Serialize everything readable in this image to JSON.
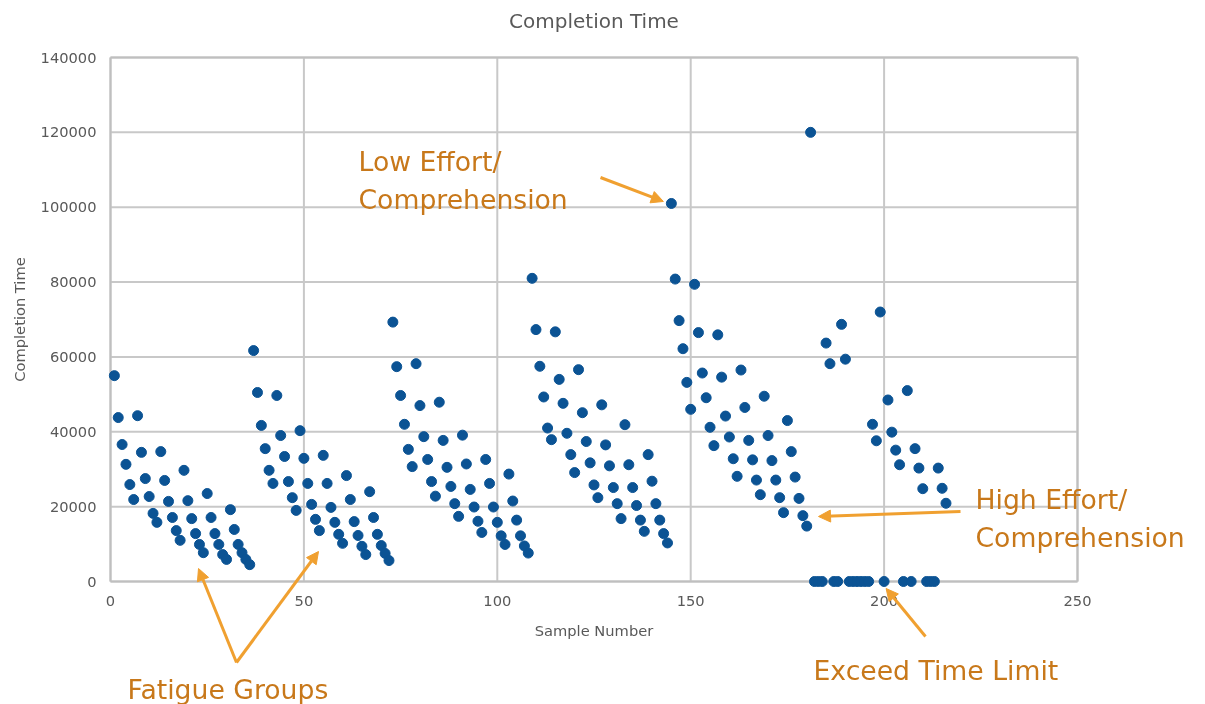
{
  "chart_data": {
    "type": "scatter",
    "title": "Completion Time",
    "xlabel": "Sample Number",
    "ylabel": "Completion Time",
    "xlim": [
      0,
      250
    ],
    "xticks": [
      0,
      50,
      100,
      150,
      200,
      250
    ],
    "ylim": [
      0,
      140000
    ],
    "yticks": [
      0,
      20000,
      40000,
      60000,
      80000,
      100000,
      120000,
      140000
    ],
    "grid": true,
    "marker": "circle",
    "series": [
      {
        "color": "#0b5394",
        "x": [
          1,
          2,
          3,
          4,
          5,
          6,
          7,
          8,
          9,
          10,
          11,
          12,
          13,
          14,
          15,
          16,
          17,
          18,
          19,
          20,
          21,
          22,
          23,
          24,
          25,
          26,
          27,
          28,
          29,
          30,
          31,
          32,
          33,
          34,
          35,
          36,
          37,
          38,
          39,
          40,
          41,
          42,
          43,
          44,
          45,
          46,
          47,
          48,
          49,
          50,
          51,
          52,
          53,
          54,
          55,
          56,
          57,
          58,
          59,
          60,
          61,
          62,
          63,
          64,
          65,
          66,
          67,
          68,
          69,
          70,
          71,
          72,
          73,
          74,
          75,
          76,
          77,
          78,
          79,
          80,
          81,
          82,
          83,
          84,
          85,
          86,
          87,
          88,
          89,
          90,
          91,
          92,
          93,
          94,
          95,
          96,
          97,
          98,
          99,
          100,
          101,
          102,
          103,
          104,
          105,
          106,
          107,
          108,
          109,
          110,
          111,
          112,
          113,
          114,
          115,
          116,
          117,
          118,
          119,
          120,
          121,
          122,
          123,
          124,
          125,
          126,
          127,
          128,
          129,
          130,
          131,
          132,
          133,
          134,
          135,
          136,
          137,
          138,
          139,
          140,
          141,
          142,
          143,
          144,
          145,
          146,
          147,
          148,
          149,
          150,
          151,
          152,
          153,
          154,
          155,
          156,
          157,
          158,
          159,
          160,
          161,
          162,
          163,
          164,
          165,
          166,
          167,
          168,
          169,
          170,
          171,
          172,
          173,
          174,
          175,
          176,
          177,
          178,
          179,
          180,
          181,
          182,
          183,
          184,
          185,
          186,
          187,
          188,
          189,
          190,
          191,
          192,
          193,
          194,
          195,
          196,
          197,
          198,
          199,
          200,
          201,
          202,
          203,
          204,
          205,
          206,
          207,
          208,
          209,
          210,
          211,
          212,
          213,
          214,
          215,
          216
        ],
        "values": [
          55000,
          43800,
          36600,
          31300,
          25900,
          21900,
          44300,
          34500,
          27500,
          22700,
          18200,
          15800,
          34700,
          27000,
          21400,
          17100,
          13600,
          11000,
          29700,
          21600,
          16800,
          12800,
          9900,
          7700,
          23500,
          17100,
          12800,
          9900,
          7200,
          5900,
          19200,
          13900,
          9900,
          7700,
          5900,
          4500,
          61700,
          50500,
          41700,
          35500,
          29700,
          26200,
          49700,
          39000,
          33400,
          26700,
          22400,
          19000,
          40300,
          32900,
          26200,
          20600,
          16600,
          13600,
          33700,
          26200,
          19800,
          15800,
          12600,
          10200,
          28300,
          21900,
          16000,
          12300,
          9400,
          7200,
          24000,
          17100,
          12600,
          9600,
          7500,
          5600,
          69300,
          57400,
          49700,
          42000,
          35300,
          30700,
          58200,
          47000,
          38700,
          32600,
          26700,
          22800,
          47900,
          37700,
          30500,
          25400,
          20800,
          17400,
          39100,
          31400,
          24600,
          19900,
          16100,
          13100,
          32600,
          26200,
          19900,
          15800,
          12200,
          9900,
          28700,
          21500,
          16400,
          12200,
          9500,
          7600,
          81000,
          67300,
          57500,
          49300,
          41000,
          37900,
          66700,
          54000,
          47600,
          39600,
          33900,
          29100,
          56600,
          45100,
          37400,
          31700,
          25800,
          22400,
          47200,
          36500,
          30900,
          25100,
          20800,
          16800,
          41900,
          31200,
          25100,
          20300,
          16400,
          13400,
          33900,
          26800,
          20800,
          16400,
          12800,
          10300,
          101000,
          80800,
          69700,
          62200,
          53200,
          46000,
          79400,
          66500,
          55700,
          49100,
          41200,
          36300,
          65900,
          54600,
          44200,
          38600,
          32800,
          28100,
          56500,
          46500,
          37700,
          32500,
          27100,
          23200,
          49500,
          39000,
          32300,
          27100,
          22400,
          18400,
          43000,
          34700,
          27900,
          22200,
          17600,
          14800,
          120000,
          0,
          0,
          0,
          63700,
          58200,
          0,
          0,
          68700,
          59400,
          0,
          0,
          0,
          0,
          0,
          0,
          42000,
          37600,
          72000,
          0,
          48500,
          39900,
          35100,
          31200,
          0,
          51000,
          0,
          35500,
          30300,
          24800,
          0,
          0,
          0,
          30300,
          24900,
          20900
        ]
      }
    ],
    "annotations": [
      {
        "text": "Low Effort/\nComprehension",
        "x": 145,
        "y": 101000
      },
      "High Effort/\nComprehension",
      {
        "text": "Exceed Time Limit",
        "x": 200,
        "y": 0
      },
      "Fatigue Groups"
    ]
  }
}
